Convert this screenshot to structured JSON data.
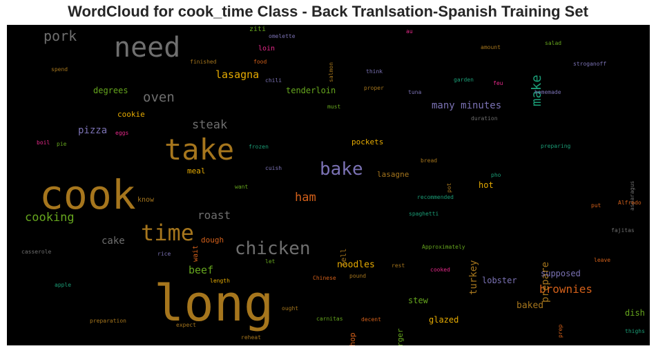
{
  "title": "WordCloud for cook_time Class - Back Tranlsation-Spanish Training Set",
  "colors": {
    "background": "#000000",
    "grey": "#6f6f6f",
    "gold": "#b9862a",
    "orange": "#d3601a",
    "purple": "#7b72b4",
    "green": "#66a61e",
    "teal": "#1b9e77",
    "magenta": "#e7298a",
    "brown": "#a6761d"
  },
  "chart_data": {
    "type": "wordcloud",
    "words": [
      {
        "text": "long",
        "color": "#a6761d",
        "rot": 0
      },
      {
        "text": "cook",
        "color": "#a6761d",
        "rot": 0
      },
      {
        "text": "need",
        "color": "#6f6f6f",
        "rot": 0
      },
      {
        "text": "take",
        "color": "#a6761d",
        "rot": 0
      },
      {
        "text": "time",
        "color": "#a6761d",
        "rot": 0
      },
      {
        "text": "chicken",
        "color": "#6f6f6f",
        "rot": 0
      },
      {
        "text": "bake",
        "color": "#7b72b4",
        "rot": 0
      },
      {
        "text": "make",
        "color": "#1b9e77",
        "rot": -90
      },
      {
        "text": "oven",
        "color": "#6f6f6f",
        "rot": 0
      },
      {
        "text": "pork",
        "color": "#6f6f6f",
        "rot": 0
      },
      {
        "text": "steak",
        "color": "#6f6f6f",
        "rot": 0
      },
      {
        "text": "cooking",
        "color": "#66a61e",
        "rot": 0
      },
      {
        "text": "roast",
        "color": "#6f6f6f",
        "rot": 0
      },
      {
        "text": "ham",
        "color": "#d3601a",
        "rot": 0
      },
      {
        "text": "brownies",
        "color": "#d3601a",
        "rot": 0
      },
      {
        "text": "lasagna",
        "color": "#e6ab02",
        "rot": 0
      },
      {
        "text": "cake",
        "color": "#6f6f6f",
        "rot": 0
      },
      {
        "text": "beef",
        "color": "#66a61e",
        "rot": 0
      },
      {
        "text": "pizza",
        "color": "#7b72b4",
        "rot": 0
      },
      {
        "text": "many minutes",
        "color": "#7b72b4",
        "rot": 0
      },
      {
        "text": "turkey",
        "color": "#a6761d",
        "rot": -90
      },
      {
        "text": "prepare",
        "color": "#a6761d",
        "rot": -90
      },
      {
        "text": "noodles",
        "color": "#e6ab02",
        "rot": 0
      },
      {
        "text": "baked",
        "color": "#a6761d",
        "rot": 0
      },
      {
        "text": "supposed",
        "color": "#7b72b4",
        "rot": 0
      },
      {
        "text": "lobster",
        "color": "#7b72b4",
        "rot": 0
      },
      {
        "text": "glazed",
        "color": "#e6ab02",
        "rot": 0
      },
      {
        "text": "stew",
        "color": "#66a61e",
        "rot": 0
      },
      {
        "text": "dish",
        "color": "#66a61e",
        "rot": 0
      },
      {
        "text": "tenderloin",
        "color": "#66a61e",
        "rot": 0
      },
      {
        "text": "degrees",
        "color": "#66a61e",
        "rot": 0
      },
      {
        "text": "cookie",
        "color": "#e6ab02",
        "rot": 0
      },
      {
        "text": "hot",
        "color": "#e6ab02",
        "rot": 0
      },
      {
        "text": "pockets",
        "color": "#e6ab02",
        "rot": 0
      },
      {
        "text": "meal",
        "color": "#e6ab02",
        "rot": 0
      },
      {
        "text": "dough",
        "color": "#d3601a",
        "rot": 0
      },
      {
        "text": "wait",
        "color": "#d3601a",
        "rot": -90
      },
      {
        "text": "tell",
        "color": "#a6761d",
        "rot": -90
      },
      {
        "text": "chop",
        "color": "#d3601a",
        "rot": -90
      },
      {
        "text": "hamburger",
        "color": "#66a61e",
        "rot": -90
      },
      {
        "text": "lasagne",
        "color": "#a6761d",
        "rot": 0
      },
      {
        "text": "loin",
        "color": "#e7298a",
        "rot": 0
      },
      {
        "text": "ziti",
        "color": "#66a61e",
        "rot": 0
      },
      {
        "text": "know",
        "color": "#a6761d",
        "rot": 0
      },
      {
        "text": "omelette",
        "color": "#7b72b4",
        "rot": 0
      },
      {
        "text": "finished",
        "color": "#a6761d",
        "rot": 0
      },
      {
        "text": "food",
        "color": "#d3601a",
        "rot": 0
      },
      {
        "text": "salmon",
        "color": "#a6761d",
        "rot": -90
      },
      {
        "text": "au",
        "color": "#e7298a",
        "rot": 0
      },
      {
        "text": "amount",
        "color": "#a6761d",
        "rot": 0
      },
      {
        "text": "salad",
        "color": "#66a61e",
        "rot": 0
      },
      {
        "text": "stroganoff",
        "color": "#7b72b4",
        "rot": 0
      },
      {
        "text": "spend",
        "color": "#a6761d",
        "rot": 0
      },
      {
        "text": "chili",
        "color": "#7b72b4",
        "rot": 0
      },
      {
        "text": "think",
        "color": "#7b72b4",
        "rot": 0
      },
      {
        "text": "proper",
        "color": "#a6761d",
        "rot": 0
      },
      {
        "text": "garden",
        "color": "#1b9e77",
        "rot": 0
      },
      {
        "text": "feu",
        "color": "#e7298a",
        "rot": 0
      },
      {
        "text": "homemade",
        "color": "#7b72b4",
        "rot": 0
      },
      {
        "text": "tuna",
        "color": "#7b72b4",
        "rot": 0
      },
      {
        "text": "must",
        "color": "#66a61e",
        "rot": 0
      },
      {
        "text": "duration",
        "color": "#6f6f6f",
        "rot": 0
      },
      {
        "text": "eggs",
        "color": "#e7298a",
        "rot": 0
      },
      {
        "text": "boil",
        "color": "#e7298a",
        "rot": 0
      },
      {
        "text": "pie",
        "color": "#66a61e",
        "rot": 0
      },
      {
        "text": "frozen",
        "color": "#1b9e77",
        "rot": 0
      },
      {
        "text": "preparing",
        "color": "#1b9e77",
        "rot": 0
      },
      {
        "text": "bread",
        "color": "#a6761d",
        "rot": 0
      },
      {
        "text": "asparagus",
        "color": "#6f6f6f",
        "rot": -90
      },
      {
        "text": "cuish",
        "color": "#7b72b4",
        "rot": 0
      },
      {
        "text": "pot",
        "color": "#a6761d",
        "rot": -90
      },
      {
        "text": "pho",
        "color": "#1b9e77",
        "rot": 0
      },
      {
        "text": "want",
        "color": "#66a61e",
        "rot": 0
      },
      {
        "text": "recommended",
        "color": "#1b9e77",
        "rot": 0
      },
      {
        "text": "put",
        "color": "#d3601a",
        "rot": 0
      },
      {
        "text": "Alfredo",
        "color": "#d3601a",
        "rot": 0
      },
      {
        "text": "spaghetti",
        "color": "#1b9e77",
        "rot": 0
      },
      {
        "text": "fajitas",
        "color": "#6f6f6f",
        "rot": 0
      },
      {
        "text": "casserole",
        "color": "#6f6f6f",
        "rot": 0
      },
      {
        "text": "rice",
        "color": "#7b72b4",
        "rot": 0
      },
      {
        "text": "Approximately",
        "color": "#66a61e",
        "rot": 0
      },
      {
        "text": "let",
        "color": "#66a61e",
        "rot": 0
      },
      {
        "text": "rest",
        "color": "#a6761d",
        "rot": 0
      },
      {
        "text": "cooked",
        "color": "#e7298a",
        "rot": 0
      },
      {
        "text": "leave",
        "color": "#d3601a",
        "rot": 0
      },
      {
        "text": "length",
        "color": "#e6ab02",
        "rot": 0
      },
      {
        "text": "Chinese",
        "color": "#d3601a",
        "rot": 0
      },
      {
        "text": "pound",
        "color": "#a6761d",
        "rot": 0
      },
      {
        "text": "apple",
        "color": "#1b9e77",
        "rot": 0
      },
      {
        "text": "ought",
        "color": "#a6761d",
        "rot": 0
      },
      {
        "text": "preparation",
        "color": "#a6761d",
        "rot": 0
      },
      {
        "text": "expect",
        "color": "#a6761d",
        "rot": 0
      },
      {
        "text": "carnitas",
        "color": "#66a61e",
        "rot": 0
      },
      {
        "text": "decent",
        "color": "#d3601a",
        "rot": 0
      },
      {
        "text": "reheat",
        "color": "#a6761d",
        "rot": 0
      },
      {
        "text": "prep",
        "color": "#d3601a",
        "rot": -90
      },
      {
        "text": "thighs",
        "color": "#1b9e77",
        "rot": 0
      }
    ]
  }
}
